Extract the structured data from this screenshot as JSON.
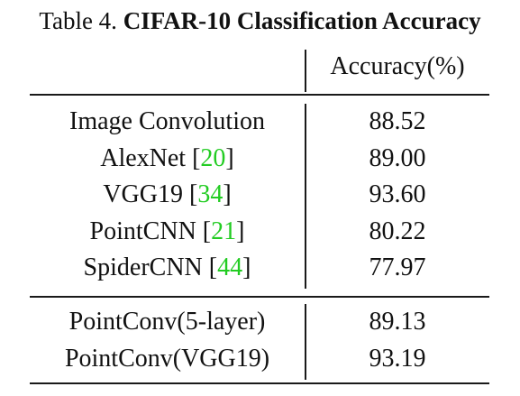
{
  "caption": {
    "prefix": "Table 4. ",
    "title": "CIFAR-10 Classification Accuracy"
  },
  "header": {
    "accuracy_label": "Accuracy(%)"
  },
  "group1": [
    {
      "name": "Image Convolution",
      "cite": "",
      "accuracy": "88.52"
    },
    {
      "name": "AlexNet",
      "cite": "20",
      "accuracy": "89.00"
    },
    {
      "name": "VGG19",
      "cite": "34",
      "accuracy": "93.60"
    },
    {
      "name": "PointCNN",
      "cite": "21",
      "accuracy": "80.22"
    },
    {
      "name": "SpiderCNN",
      "cite": "44",
      "accuracy": "77.97"
    }
  ],
  "group2": [
    {
      "name": "PointConv(5-layer)",
      "cite": "",
      "accuracy": "89.13"
    },
    {
      "name": "PointConv(VGG19)",
      "cite": "",
      "accuracy": "93.19"
    }
  ],
  "colors": {
    "citation": "#22cc22",
    "text": "#111111"
  }
}
